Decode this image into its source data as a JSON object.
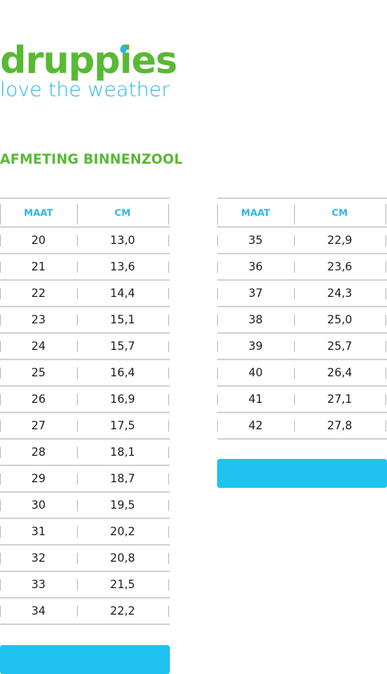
{
  "brand": {
    "name": "druppies",
    "tagline": "love the weather",
    "primary_color": "#58b935",
    "accent_color": "#2ab7e6"
  },
  "section_title": "AFMETING BINNENZOOL",
  "table_headers": {
    "maat": "MAAT",
    "cm": "CM"
  },
  "left_table": [
    {
      "maat": "20",
      "cm": "13,0"
    },
    {
      "maat": "21",
      "cm": "13,6"
    },
    {
      "maat": "22",
      "cm": "14,4"
    },
    {
      "maat": "23",
      "cm": "15,1"
    },
    {
      "maat": "24",
      "cm": "15,7"
    },
    {
      "maat": "25",
      "cm": "16,4"
    },
    {
      "maat": "26",
      "cm": "16,9"
    },
    {
      "maat": "27",
      "cm": "17,5"
    },
    {
      "maat": "28",
      "cm": "18,1"
    },
    {
      "maat": "29",
      "cm": "18,7"
    },
    {
      "maat": "30",
      "cm": "19,5"
    },
    {
      "maat": "31",
      "cm": "20,2"
    },
    {
      "maat": "32",
      "cm": "20,8"
    },
    {
      "maat": "33",
      "cm": "21,5"
    },
    {
      "maat": "34",
      "cm": "22,2"
    }
  ],
  "right_table": [
    {
      "maat": "35",
      "cm": "22,9"
    },
    {
      "maat": "36",
      "cm": "23,6"
    },
    {
      "maat": "37",
      "cm": "24,3"
    },
    {
      "maat": "38",
      "cm": "25,0"
    },
    {
      "maat": "39",
      "cm": "25,7"
    },
    {
      "maat": "40",
      "cm": "26,4"
    },
    {
      "maat": "41",
      "cm": "27,1"
    },
    {
      "maat": "42",
      "cm": "27,8"
    }
  ]
}
